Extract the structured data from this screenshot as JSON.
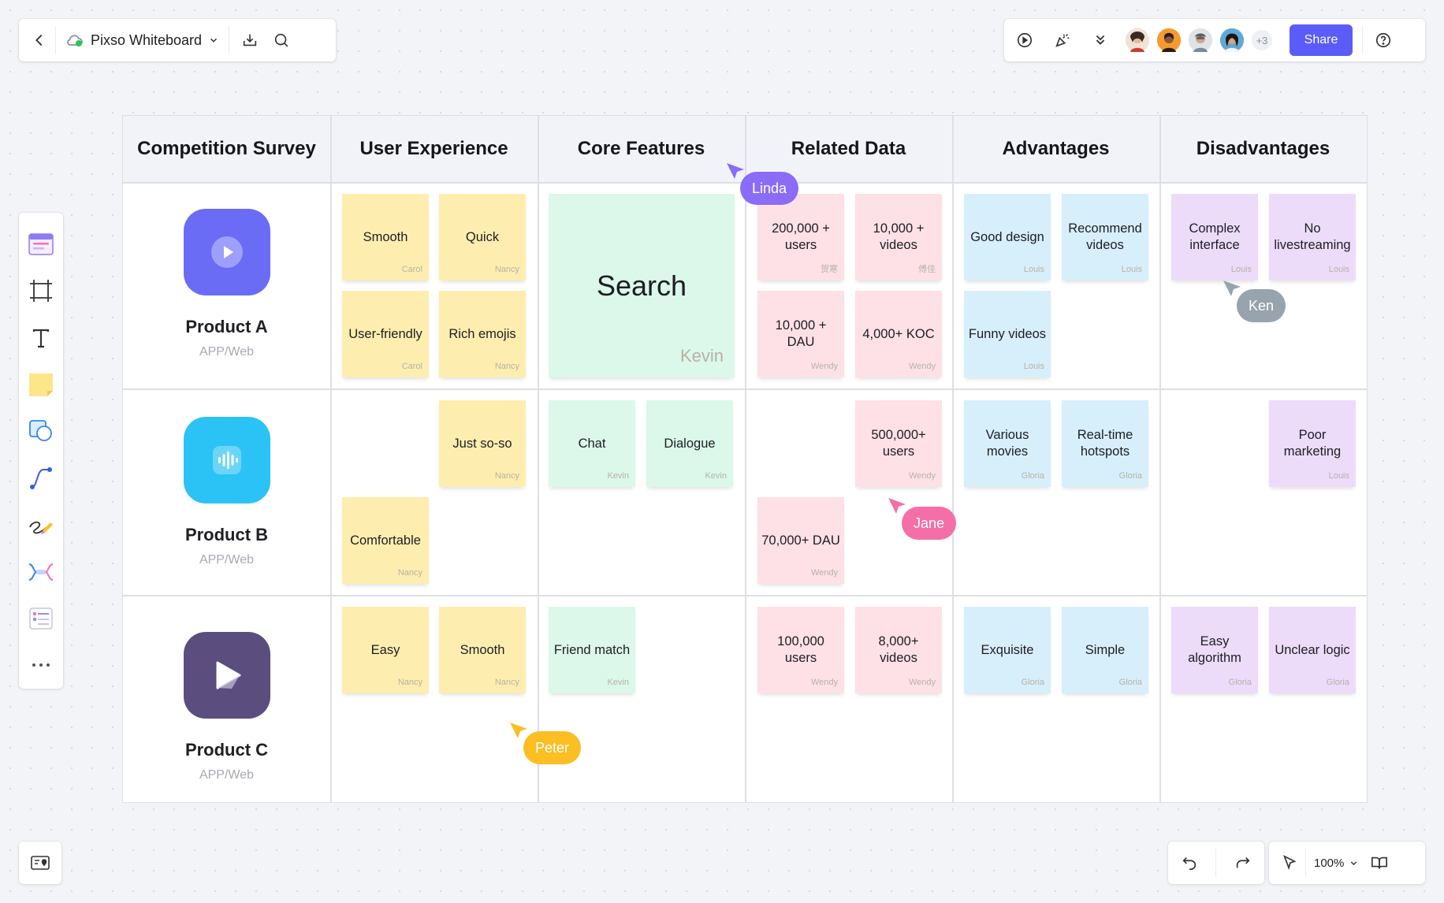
{
  "toolbar_left": {
    "title": "Pixso Whiteboard"
  },
  "toolbar_right": {
    "more_count": "+3",
    "share_label": "Share"
  },
  "table": {
    "columns": [
      "Competition Survey",
      "User Experience",
      "Core Features",
      "Related Data",
      "Advantages",
      "Disadvantages"
    ],
    "products": [
      {
        "name": "Product A",
        "platform": "APP/Web"
      },
      {
        "name": "Product B",
        "platform": "APP/Web"
      },
      {
        "name": "Product C",
        "platform": "APP/Web"
      }
    ]
  },
  "notes": [
    {
      "text": "Smooth",
      "author": "Carol"
    },
    {
      "text": "Quick",
      "author": "Nancy"
    },
    {
      "text": "User-friendly",
      "author": "Carol"
    },
    {
      "text": "Rich emojis",
      "author": "Nancy"
    },
    {
      "text": "Search",
      "author": "Kevin"
    },
    {
      "text": "200,000 + users",
      "author": "贺寒"
    },
    {
      "text": "10,000 + videos",
      "author": "傅佳"
    },
    {
      "text": "10,000 + DAU",
      "author": "Wendy"
    },
    {
      "text": "4,000+ KOC",
      "author": "Wendy"
    },
    {
      "text": "Good design",
      "author": "Louis"
    },
    {
      "text": "Recommend videos",
      "author": "Louis"
    },
    {
      "text": "Funny videos",
      "author": "Louis"
    },
    {
      "text": "Complex interface",
      "author": "Louis"
    },
    {
      "text": "No livestreaming",
      "author": "Louis"
    },
    {
      "text": "Just so-so",
      "author": "Nancy"
    },
    {
      "text": "Comfortable",
      "author": "Nancy"
    },
    {
      "text": "Chat",
      "author": "Kevin"
    },
    {
      "text": "Dialogue",
      "author": "Kevin"
    },
    {
      "text": "500,000+ users",
      "author": "Wendy"
    },
    {
      "text": "70,000+ DAU",
      "author": "Wendy"
    },
    {
      "text": "Various movies",
      "author": "Gloria"
    },
    {
      "text": "Real-time hotspots",
      "author": "Gloria"
    },
    {
      "text": "Poor marketing",
      "author": "Louis"
    },
    {
      "text": "Easy",
      "author": "Nancy"
    },
    {
      "text": "Smooth",
      "author": "Nancy"
    },
    {
      "text": "Friend match",
      "author": "Kevin"
    },
    {
      "text": "100,000 users",
      "author": "Wendy"
    },
    {
      "text": "8,000+ videos",
      "author": "Wendy"
    },
    {
      "text": "Exquisite",
      "author": "Gloria"
    },
    {
      "text": "Simple",
      "author": "Gloria"
    },
    {
      "text": "Easy algorithm",
      "author": "Gloria"
    },
    {
      "text": "Unclear logic",
      "author": "Gloria"
    }
  ],
  "cursors": [
    {
      "name": "Linda",
      "color": "#8b6cf6"
    },
    {
      "name": "Ken",
      "color": "#97a3ad"
    },
    {
      "name": "Jane",
      "color": "#f56fa7"
    },
    {
      "name": "Peter",
      "color": "#fbbf24"
    }
  ],
  "zoom": {
    "level": "100%"
  },
  "colors": {
    "accent": "#5b5bf7",
    "note_yellow": "#fdeeb0",
    "note_green": "#dbf8ea",
    "note_pink": "#fde1e6",
    "note_blue": "#d7effb",
    "note_purple": "#ecdcfa",
    "product_a": "#6a6cf6",
    "product_b": "#2bc3f5",
    "product_c": "#5b4e7e"
  }
}
